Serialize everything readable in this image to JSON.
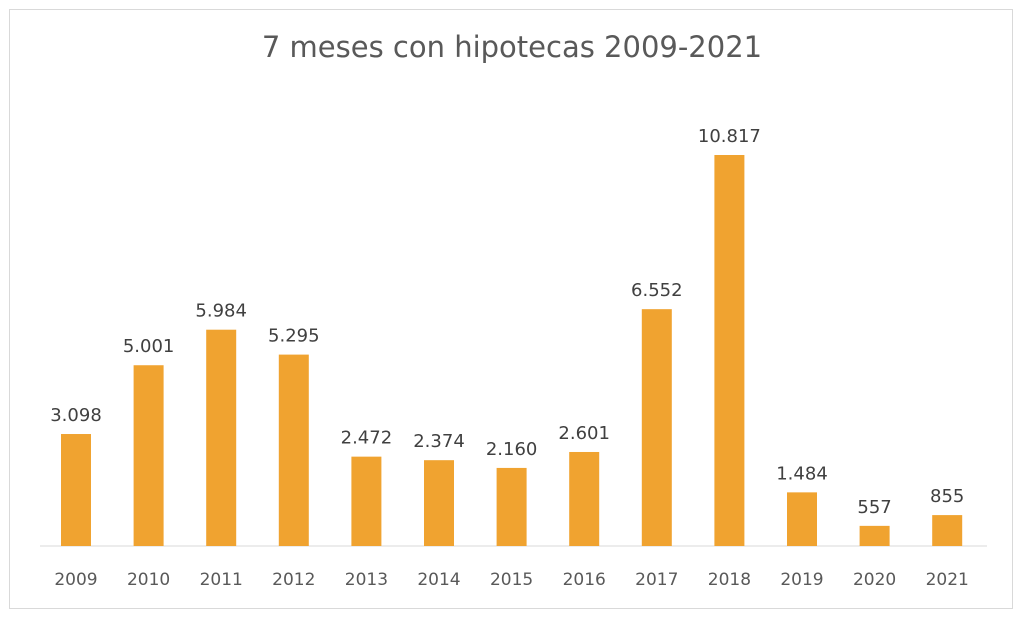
{
  "chart_data": {
    "type": "bar",
    "title": "7 meses con hipotecas 2009-2021",
    "xlabel": "",
    "ylabel": "",
    "categories": [
      "2009",
      "2010",
      "2011",
      "2012",
      "2013",
      "2014",
      "2015",
      "2016",
      "2017",
      "2018",
      "2019",
      "2020",
      "2021"
    ],
    "values": [
      3098,
      5001,
      5984,
      5295,
      2472,
      2374,
      2160,
      2601,
      6552,
      10817,
      1484,
      557,
      855
    ],
    "value_labels": [
      "3.098",
      "5.001",
      "5.984",
      "5.295",
      "2.472",
      "2.374",
      "2.160",
      "2.601",
      "6.552",
      "10.817",
      "1.484",
      "557",
      "855"
    ],
    "ylim": [
      0,
      10817
    ],
    "grid": false,
    "legend": "none",
    "bar_color": "#f0a330",
    "axis_color": "#d9d9d9"
  }
}
